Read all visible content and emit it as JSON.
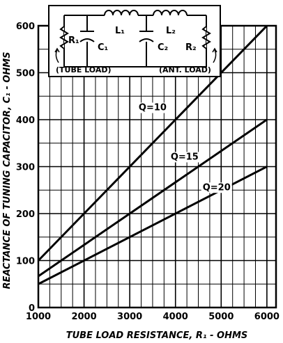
{
  "chart_data": {
    "type": "line",
    "xlabel": "TUBE LOAD RESISTANCE, R₁ - OHMS",
    "ylabel": "REACTANCE OF TUNING CAPACITOR, C₁ - OHMS",
    "xlim": [
      1000,
      6200
    ],
    "ylim": [
      0,
      600
    ],
    "xticks": [
      1000,
      2000,
      3000,
      4000,
      5000,
      6000
    ],
    "yticks": [
      0,
      100,
      200,
      300,
      400,
      500,
      600
    ],
    "grid": true,
    "series": [
      {
        "name": "Q=10",
        "x": [
          1000,
          6000
        ],
        "y": [
          100,
          600
        ],
        "label_at": [
          3500,
          420
        ]
      },
      {
        "name": "Q=15",
        "x": [
          1000,
          6000
        ],
        "y": [
          66.7,
          400
        ],
        "label_at": [
          4200,
          315
        ]
      },
      {
        "name": "Q=20",
        "x": [
          1000,
          6000
        ],
        "y": [
          50,
          300
        ],
        "label_at": [
          4900,
          250
        ]
      }
    ]
  },
  "inset": {
    "labels": {
      "r1": "R₁",
      "c1": "C₁",
      "l1": "L₁",
      "l2": "L₂",
      "c2": "C₂",
      "r2": "R₂",
      "tube_load": "(TUBE LOAD)",
      "ant_load": "(ANT. LOAD)"
    }
  }
}
